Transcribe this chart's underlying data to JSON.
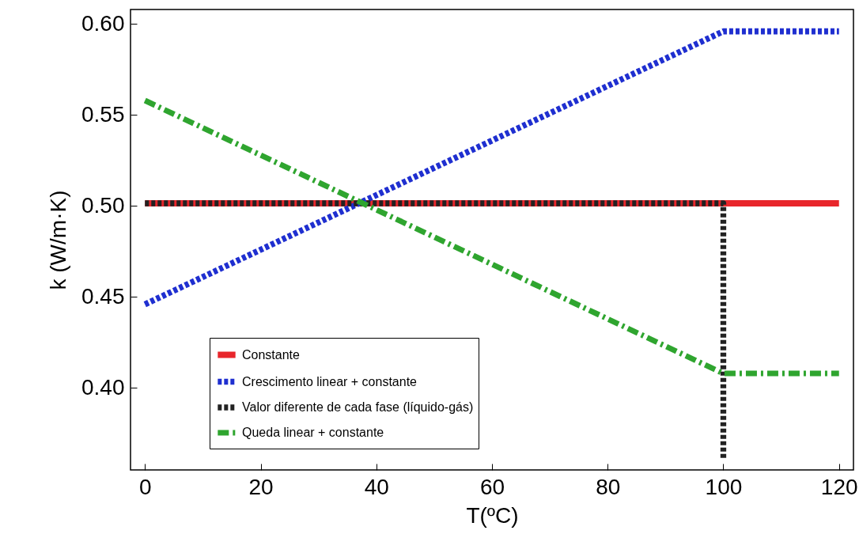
{
  "chart_data": {
    "type": "line",
    "xlabel": "T(ºC)",
    "ylabel": "k (W/m·K)",
    "xlim": [
      -2.5,
      122.5
    ],
    "ylim": [
      0.355,
      0.608
    ],
    "xticks": [
      0,
      20,
      40,
      60,
      80,
      100,
      120
    ],
    "yticks": [
      {
        "value": 0.4,
        "label": "0.40"
      },
      0.45,
      {
        "value": 0.5,
        "label": "0.50"
      },
      0.55,
      {
        "value": 0.6,
        "label": "0.60"
      }
    ],
    "grid": false,
    "legend": "bottom left",
    "marker": "none",
    "series": [
      {
        "name": "Constante",
        "color": "#e8262b",
        "line_style": "solid",
        "x": [
          0,
          120
        ],
        "values": [
          0.5015,
          0.5015
        ]
      },
      {
        "name": "Crescimento linear + constante",
        "color": "#1f2fd0",
        "line_style": "dotted",
        "x": [
          0,
          100,
          120
        ],
        "values": [
          0.446,
          0.596,
          0.596
        ]
      },
      {
        "name": "Valor diferente de cada fase (líquido-gás)",
        "color": "#222222",
        "line_style": "dotted",
        "x": [
          0,
          100,
          100
        ],
        "values": [
          0.5015,
          0.5015,
          0.361
        ]
      },
      {
        "name": "Queda linear + constante",
        "color": "#2fa52f",
        "line_style": "dashed",
        "x": [
          0,
          100,
          120
        ],
        "values": [
          0.558,
          0.408,
          0.408
        ]
      }
    ]
  }
}
